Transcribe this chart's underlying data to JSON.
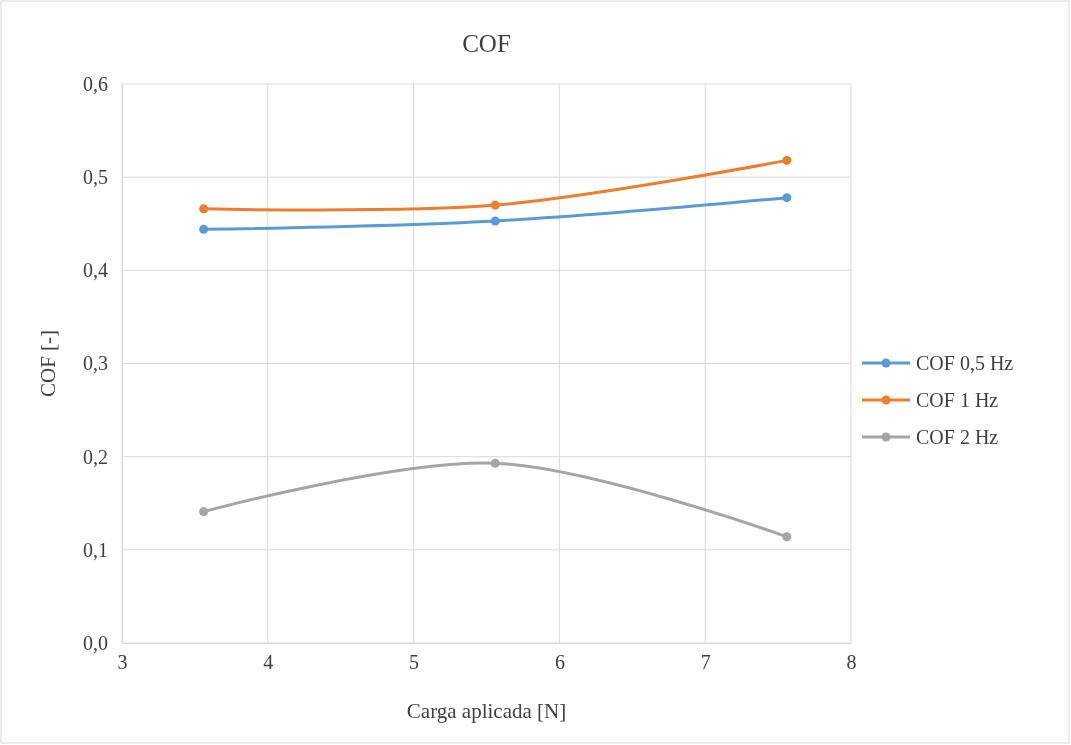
{
  "chart_data": {
    "type": "line",
    "title": "COF",
    "xlabel": "Carga aplicada [N]",
    "ylabel": "COF [-]",
    "x": [
      3.56,
      5.56,
      7.56
    ],
    "series": [
      {
        "name": "COF 0,5 Hz",
        "color": "#5b9bd5",
        "values": [
          0.444,
          0.453,
          0.478
        ]
      },
      {
        "name": "COF 1 Hz",
        "color": "#ed7d31",
        "values": [
          0.466,
          0.47,
          0.518
        ]
      },
      {
        "name": "COF 2 Hz",
        "color": "#a5a5a5",
        "values": [
          0.141,
          0.193,
          0.114
        ]
      }
    ],
    "xlim": [
      3,
      8
    ],
    "xticks": [
      3,
      4,
      5,
      6,
      7,
      8
    ],
    "ylim": [
      0,
      0.6
    ],
    "yticks": [
      {
        "value": 0,
        "label": "0,0"
      },
      {
        "value": 0.1,
        "label": "0,1"
      },
      {
        "value": 0.2,
        "label": "0,2"
      },
      {
        "value": 0.3,
        "label": "0,3"
      },
      {
        "value": 0.4,
        "label": "0,4"
      },
      {
        "value": 0.5,
        "label": "0,5"
      },
      {
        "value": 0.6,
        "label": "0,6"
      }
    ],
    "grid": true,
    "legend": "right",
    "marker": "circle",
    "line_style": "solid"
  }
}
